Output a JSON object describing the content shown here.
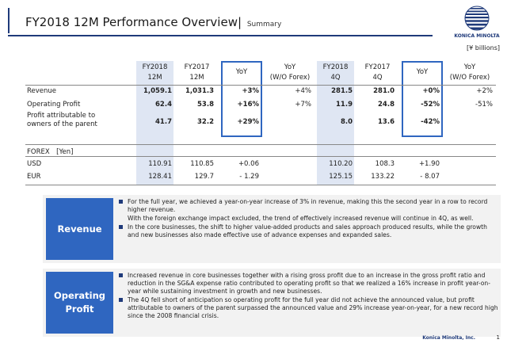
{
  "header": {
    "title": "FY2018 12M Performance Overview",
    "separator": "|",
    "subtitle": "Summary",
    "logo_text": "KONICA MINOLTA",
    "unit": "[¥ billions]"
  },
  "table": {
    "headers": [
      {
        "line1": "FY2018",
        "line2": "12M"
      },
      {
        "line1": "FY2017",
        "line2": "12M"
      },
      {
        "line1": "YoY",
        "line2": ""
      },
      {
        "line1": "YoY",
        "line2": "(W/O Forex)"
      },
      {
        "line1": "FY2018",
        "line2": "4Q"
      },
      {
        "line1": "FY2017",
        "line2": "4Q"
      },
      {
        "line1": "YoY",
        "line2": ""
      },
      {
        "line1": "YoY",
        "line2": "(W/O Forex)"
      }
    ],
    "rows": [
      {
        "label": "Revenue",
        "label2": "",
        "values": [
          "1,059.1",
          "1,031.3",
          "+3%",
          "+4%",
          "281.5",
          "281.0",
          "+0%",
          "+2%"
        ]
      },
      {
        "label": "Operating Profit",
        "label2": "",
        "values": [
          "62.4",
          "53.8",
          "+16%",
          "+7%",
          "11.9",
          "24.8",
          "-52%",
          "-51%"
        ]
      },
      {
        "label": "Profit attributable to",
        "label2": "owners of the parent",
        "values": [
          "41.7",
          "32.2",
          "+29%",
          "",
          "8.0",
          "13.6",
          "-42%",
          ""
        ]
      }
    ],
    "forex_header": "FOREX　[Yen]",
    "forex_rows": [
      {
        "label": "USD",
        "values": [
          "110.91",
          "110.85",
          "+0.06",
          "",
          "110.20",
          "108.3",
          "+1.90",
          ""
        ]
      },
      {
        "label": "EUR",
        "values": [
          "128.41",
          "129.7",
          "- 1.29",
          "",
          "125.15",
          "133.22",
          "- 8.07",
          ""
        ]
      }
    ]
  },
  "revenue_box": {
    "label": "Revenue",
    "bullets": [
      {
        "text": "For the full year, we achieved a year-on-year increase of 3% in revenue, making this the second year in a row to record higher revenue.",
        "continuation": "With the foreign exchange impact excluded, the trend of effectively increased revenue will continue in 4Q, as well."
      },
      {
        "text": "In the core businesses, the shift to higher value-added products and sales approach produced results, while the growth and new businesses also made effective use of advance expenses and expanded sales.",
        "continuation": ""
      }
    ]
  },
  "profit_box": {
    "label_line1": "Operating",
    "label_line2": "Profit",
    "bullets": [
      {
        "text": "Increased revenue in core businesses together with a rising gross profit due to an increase in the gross profit ratio and reduction in the SG&A expense ratio contributed to operating profit so that we realized a 16% increase in profit year-on-year while sustaining investment in growth and new businesses."
      },
      {
        "text": "The 4Q fell short of anticipation so operating profit for the full year did not achieve the announced value, but profit attributable to owners of the parent surpassed the announced value and 29% increase year-on-year, for a new record high since the 2008 financial crisis."
      }
    ]
  },
  "footer": {
    "company": "Konica Minolta, Inc.",
    "page": "1"
  },
  "colors": {
    "accent": "#2f66c0",
    "navy": "#1f3a7a",
    "shade": "#dfe6f3"
  },
  "icons": {
    "logo": "konica-minolta-globe-logo"
  }
}
